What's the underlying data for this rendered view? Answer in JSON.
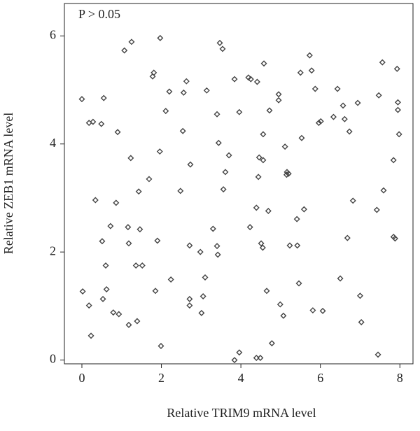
{
  "chart_data": {
    "type": "scatter",
    "annotation": "P > 0.05",
    "x_label": "Relative TRIM9 mRNA level",
    "y_label": "Relative ZEB1 mRNA level",
    "marker": "diamond",
    "color": "#444444",
    "xlim": [
      -0.44,
      8.33
    ],
    "ylim": [
      -0.07,
      6.6
    ],
    "xticks": [
      0,
      2,
      4,
      6,
      8
    ],
    "yticks": [
      0,
      2,
      4,
      6
    ],
    "x": [
      0.0,
      0.02,
      0.18,
      0.28,
      0.18,
      0.23,
      0.34,
      0.49,
      0.55,
      0.51,
      0.53,
      0.6,
      0.62,
      0.72,
      0.79,
      0.86,
      0.9,
      0.93,
      1.07,
      1.16,
      1.18,
      1.18,
      1.25,
      1.23,
      1.36,
      1.39,
      1.43,
      1.46,
      1.52,
      1.69,
      1.78,
      1.81,
      1.85,
      1.9,
      1.96,
      1.97,
      1.99,
      2.11,
      2.2,
      2.24,
      2.48,
      2.54,
      2.56,
      2.63,
      2.71,
      2.71,
      2.71,
      2.73,
      2.98,
      3.01,
      3.05,
      3.1,
      3.14,
      3.3,
      3.4,
      3.4,
      3.42,
      3.44,
      3.47,
      3.54,
      3.56,
      3.61,
      3.7,
      3.84,
      3.84,
      3.96,
      3.96,
      4.19,
      4.23,
      4.25,
      4.39,
      4.41,
      4.39,
      4.44,
      4.49,
      4.46,
      4.51,
      4.55,
      4.56,
      4.56,
      4.58,
      4.65,
      4.69,
      4.72,
      4.78,
      4.95,
      4.95,
      4.99,
      5.07,
      5.11,
      5.15,
      5.16,
      5.2,
      5.23,
      5.41,
      5.42,
      5.46,
      5.5,
      5.53,
      5.59,
      5.73,
      5.78,
      5.81,
      5.87,
      5.96,
      6.01,
      6.06,
      6.33,
      6.43,
      6.5,
      6.57,
      6.61,
      6.68,
      6.73,
      6.82,
      6.94,
      7.0,
      7.03,
      7.42,
      7.45,
      7.47,
      7.56,
      7.59,
      7.84,
      7.84,
      7.88,
      7.93,
      7.95,
      7.95,
      7.98
    ],
    "values": [
      4.83,
      1.27,
      4.39,
      4.41,
      1.01,
      0.45,
      2.96,
      4.37,
      4.85,
      2.2,
      1.13,
      1.75,
      1.31,
      2.48,
      0.88,
      2.91,
      4.22,
      0.85,
      5.73,
      2.46,
      2.16,
      0.65,
      5.89,
      3.74,
      1.75,
      0.72,
      3.12,
      2.42,
      1.75,
      3.35,
      5.25,
      5.32,
      1.28,
      2.21,
      3.86,
      5.96,
      0.26,
      4.61,
      4.97,
      1.49,
      3.13,
      4.24,
      4.95,
      5.16,
      1.13,
      1.01,
      2.12,
      3.62,
      2.0,
      0.87,
      1.18,
      1.53,
      4.99,
      2.43,
      2.11,
      4.55,
      1.95,
      4.02,
      5.87,
      5.76,
      3.16,
      3.48,
      3.79,
      5.2,
      0.0,
      4.59,
      0.14,
      5.23,
      2.46,
      5.2,
      2.82,
      5.15,
      0.04,
      3.39,
      0.04,
      3.75,
      2.16,
      2.08,
      4.18,
      3.7,
      5.49,
      1.28,
      2.76,
      4.62,
      0.31,
      4.92,
      4.81,
      1.03,
      0.82,
      3.95,
      3.43,
      3.48,
      3.45,
      2.12,
      2.61,
      2.12,
      1.42,
      5.32,
      4.11,
      2.79,
      5.64,
      5.36,
      0.92,
      5.02,
      4.39,
      4.42,
      0.91,
      4.5,
      5.02,
      1.51,
      4.71,
      4.46,
      2.26,
      4.23,
      2.95,
      4.76,
      1.19,
      0.7,
      2.78,
      0.1,
      4.9,
      5.51,
      3.14,
      3.7,
      2.28,
      2.25,
      5.39,
      4.77,
      4.63,
      4.18
    ]
  }
}
